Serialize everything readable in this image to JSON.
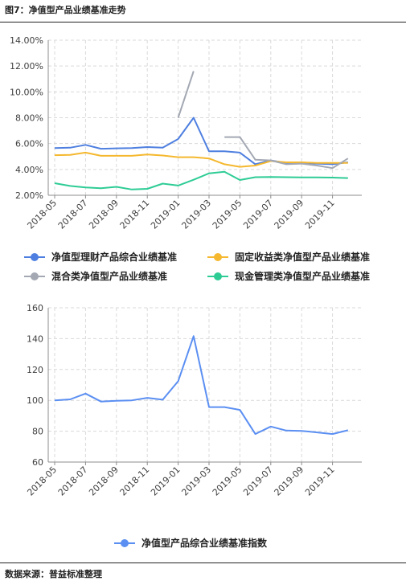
{
  "figure_title": "图7：净值型产品业绩基准走势",
  "source_note": "数据来源：普益标准整理",
  "chart_data": [
    {
      "type": "line",
      "ylim": [
        0.02,
        0.14
      ],
      "yticks": [
        "2.00%",
        "4.00%",
        "6.00%",
        "8.00%",
        "10.00%",
        "12.00%",
        "14.00%"
      ],
      "ytick_values": [
        0.02,
        0.04,
        0.06,
        0.08,
        0.1,
        0.12,
        0.14
      ],
      "xticks": [
        "2018-05",
        "2018-07",
        "2018-09",
        "2018-11",
        "2019-01",
        "2019-03",
        "2019-05",
        "2019-07",
        "2019-09",
        "2019-11"
      ],
      "x": [
        "2018-05",
        "2018-06",
        "2018-07",
        "2018-08",
        "2018-09",
        "2018-10",
        "2018-11",
        "2018-12",
        "2019-01",
        "2019-02",
        "2019-03",
        "2019-04",
        "2019-05",
        "2019-06",
        "2019-07",
        "2019-08",
        "2019-09",
        "2019-10",
        "2019-11",
        "2019-12"
      ],
      "grid": true,
      "legend_position": "bottom",
      "series": [
        {
          "name": "净值型理财产品综合业绩基准",
          "color": "#4e7fe0",
          "values": [
            0.0565,
            0.0568,
            0.059,
            0.056,
            0.0563,
            0.0565,
            0.0573,
            0.0568,
            0.0635,
            0.08,
            0.054,
            0.054,
            0.053,
            0.044,
            0.047,
            0.045,
            0.045,
            0.0445,
            0.044,
            0.0455
          ]
        },
        {
          "name": "固定收益类净值型产品业绩基准",
          "color": "#f5b82e",
          "values": [
            0.051,
            0.0512,
            0.053,
            0.0505,
            0.0505,
            0.0505,
            0.0515,
            0.0508,
            0.0495,
            0.0495,
            0.0485,
            0.044,
            0.042,
            0.043,
            0.0465,
            0.0455,
            0.0455,
            0.045,
            0.045,
            0.045
          ]
        },
        {
          "name": "混合类净值型产品业绩基准",
          "color": "#a3a8b3",
          "values": [
            null,
            null,
            null,
            null,
            null,
            null,
            null,
            null,
            0.08,
            0.116,
            null,
            0.065,
            0.065,
            0.0475,
            0.047,
            0.044,
            0.0445,
            0.043,
            0.041,
            0.0485
          ]
        },
        {
          "name": "现金管理类净值型产品业绩基准",
          "color": "#2ecc95",
          "values": [
            0.0293,
            0.0272,
            0.026,
            0.0255,
            0.0265,
            0.0245,
            0.025,
            0.029,
            0.0275,
            0.032,
            0.037,
            0.0382,
            0.0318,
            0.034,
            0.0342,
            0.034,
            0.0338,
            0.0338,
            0.0337,
            0.0333
          ]
        }
      ]
    },
    {
      "type": "line",
      "ylim": [
        60,
        160
      ],
      "yticks": [
        "60",
        "80",
        "100",
        "120",
        "140",
        "160"
      ],
      "ytick_values": [
        60,
        80,
        100,
        120,
        140,
        160
      ],
      "xticks": [
        "2018-05",
        "2018-07",
        "2018-09",
        "2018-11",
        "2019-01",
        "2019-03",
        "2019-05",
        "2019-07",
        "2019-09",
        "2019-11"
      ],
      "x": [
        "2018-05",
        "2018-06",
        "2018-07",
        "2018-08",
        "2018-09",
        "2018-10",
        "2018-11",
        "2018-12",
        "2019-01",
        "2019-02",
        "2019-03",
        "2019-04",
        "2019-05",
        "2019-06",
        "2019-07",
        "2019-08",
        "2019-09",
        "2019-10",
        "2019-11",
        "2019-12"
      ],
      "grid": true,
      "legend_position": "bottom",
      "series": [
        {
          "name": "净值型产品综合业绩基准指数",
          "color": "#5b8ff2",
          "values": [
            100,
            100.6,
            104.4,
            99.2,
            99.7,
            100,
            101.6,
            100.4,
            112.4,
            141.6,
            95.6,
            95.6,
            93.8,
            78.2,
            83,
            80.4,
            80.2,
            79.2,
            78.2,
            80.6
          ]
        }
      ]
    }
  ]
}
